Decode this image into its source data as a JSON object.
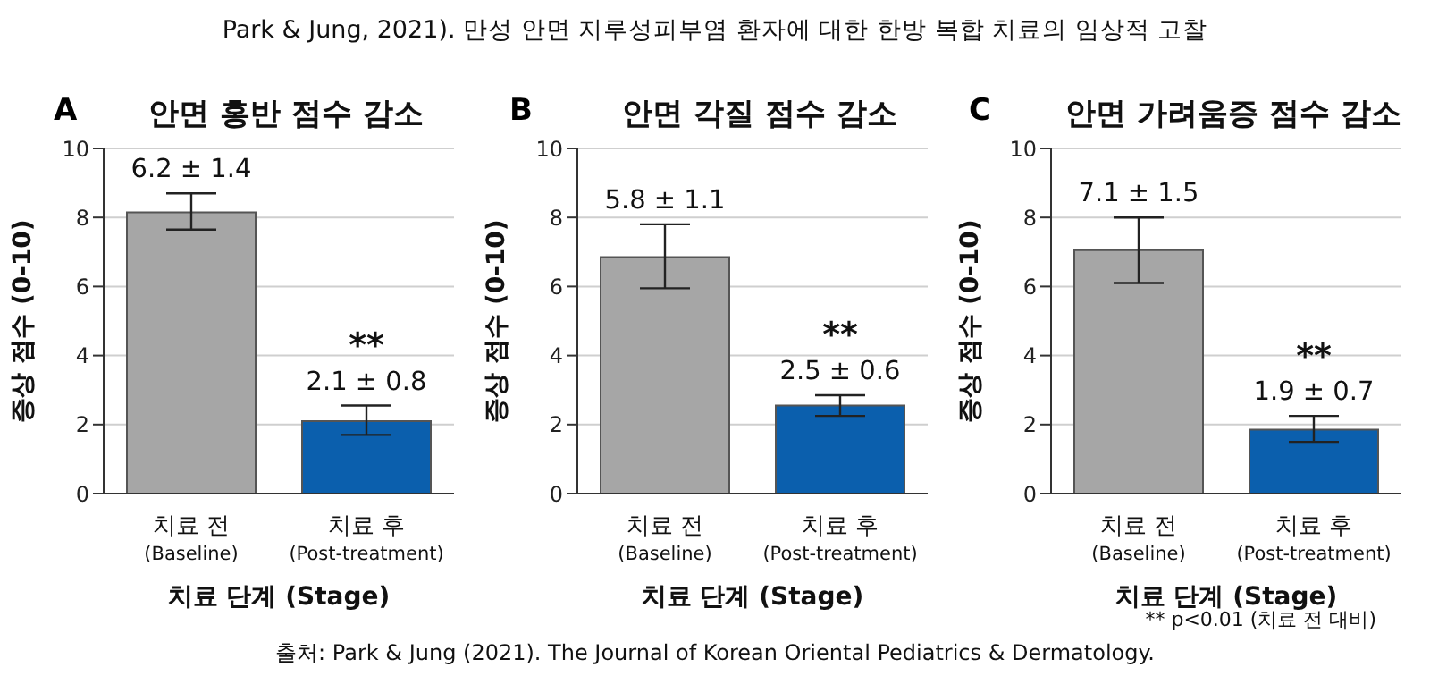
{
  "chart_data": [
    {
      "type": "bar",
      "title": "안면 홍반 점수 감소",
      "xlabel": "치료 단계 (Stage)",
      "ylabel": "증상 점수 (0-10)",
      "categories": [
        "치료 전\n(Baseline)",
        "치료 후\n(Post-treatment)"
      ],
      "values": [
        8.15,
        2.1
      ],
      "colors": [
        "#a6a6a6",
        "#0b5fad"
      ],
      "errors": [
        [
          7.65,
          8.7
        ],
        [
          1.7,
          2.55
        ]
      ],
      "ylim": [
        0,
        10
      ],
      "yticks": [
        0,
        2,
        4,
        6,
        8,
        10
      ],
      "grid": "y",
      "annotations": [
        "A",
        "Park & Jung, 2021). 만성 안면 지루성피부염 환자에 대한 한방 복합 치료의 임상적 고찰",
        "6.2 ± 1.4",
        "**",
        "2.1 ± 0.8"
      ]
    },
    {
      "type": "bar",
      "title": "안면 각질 점수 감소",
      "xlabel": "치료 단계 (Stage)",
      "ylabel": "증상 점수 (0-10)",
      "categories": [
        "치료 전\n(Baseline)",
        "치료 후\n(Post-treatment)"
      ],
      "values": [
        6.85,
        2.55
      ],
      "colors": [
        "#a6a6a6",
        "#0b5fad"
      ],
      "errors": [
        [
          5.95,
          7.8
        ],
        [
          2.25,
          2.85
        ]
      ],
      "ylim": [
        0,
        10
      ],
      "yticks": [
        0,
        2,
        4,
        6,
        8,
        10
      ],
      "grid": "y",
      "annotations": [
        "B",
        "5.8 ± 1.1",
        "**",
        "2.5 ± 0.6"
      ]
    },
    {
      "type": "bar",
      "title": "안면 가려움증 점수 감소",
      "xlabel": "치료 단계 (Stage)",
      "ylabel": "증상 점수 (0-10)",
      "categories": [
        "치료 전\n(Baseline)",
        "치료 후\n(Post-treatment)"
      ],
      "values": [
        7.05,
        1.85
      ],
      "colors": [
        "#a6a6a6",
        "#0b5fad"
      ],
      "errors": [
        [
          6.1,
          8.0
        ],
        [
          1.5,
          2.25
        ]
      ],
      "ylim": [
        0,
        10
      ],
      "yticks": [
        0,
        2,
        4,
        6,
        8,
        10
      ],
      "grid": "y",
      "annotations": [
        "C",
        "** p<0.01 (치료 전 대비)",
        "출처: Park & Jung (2021). The Journal of Korean Oriental Pediatrics & Dermatology.",
        "7.1 ± 1.5",
        "**",
        "1.9 ± 0.7"
      ]
    }
  ]
}
